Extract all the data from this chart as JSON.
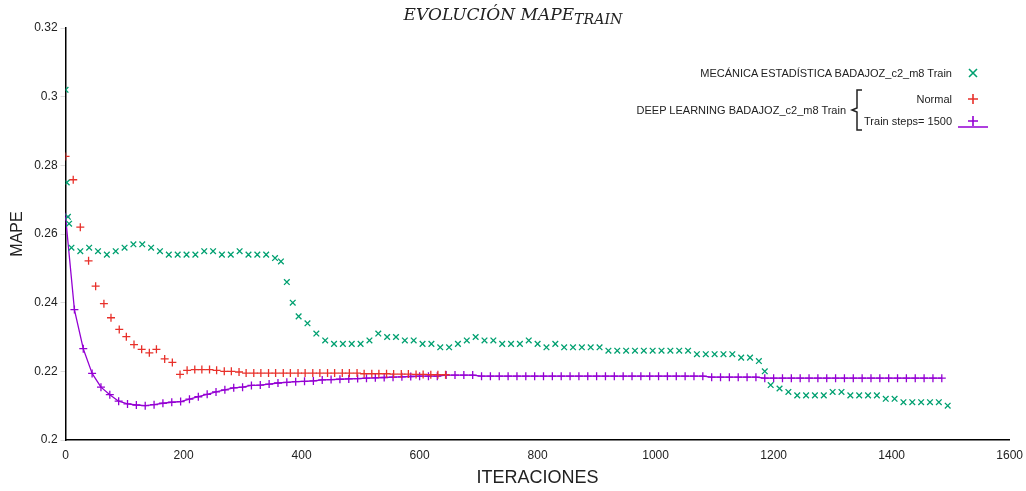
{
  "chart_data": {
    "type": "scatter",
    "title": "EVOLUCIÓN MAPE$_{TRAIN}$",
    "xlabel": "ITERACIONES",
    "ylabel": "MAPE",
    "xlim": [
      0,
      1600
    ],
    "xticks": [
      0,
      200,
      400,
      600,
      800,
      1000,
      1200,
      1400,
      1600
    ],
    "ylim": [
      0.2,
      0.32
    ],
    "yticks": [
      0.2,
      0.22,
      0.24,
      0.26,
      0.28,
      0.3,
      0.32
    ],
    "grid": false,
    "legend": "top right",
    "legend_title": "DEEP LEARNING  BADAJOZ_c2_m8  Train",
    "series": [
      {
        "name": "MECÁNICA ESTADÍSTICA  BADAJOZ_c2_m8  Train",
        "type": "scatter",
        "marker": "cross",
        "color": "#00a070",
        "x": [
          0,
          2,
          4,
          6,
          10,
          25,
          40,
          55,
          70,
          85,
          100,
          115,
          130,
          145,
          160,
          175,
          190,
          205,
          220,
          235,
          250,
          265,
          280,
          295,
          310,
          325,
          340,
          355,
          365,
          375,
          385,
          395,
          410,
          425,
          440,
          455,
          470,
          485,
          500,
          515,
          530,
          545,
          560,
          575,
          590,
          605,
          620,
          635,
          650,
          665,
          680,
          695,
          710,
          725,
          740,
          755,
          770,
          785,
          800,
          815,
          830,
          845,
          860,
          875,
          890,
          905,
          920,
          935,
          950,
          965,
          980,
          995,
          1010,
          1025,
          1040,
          1055,
          1070,
          1085,
          1100,
          1115,
          1130,
          1145,
          1160,
          1175,
          1185,
          1195,
          1210,
          1225,
          1240,
          1255,
          1270,
          1285,
          1300,
          1315,
          1330,
          1345,
          1360,
          1375,
          1390,
          1405,
          1420,
          1435,
          1450,
          1465,
          1480,
          1495
        ],
        "values": [
          0.302,
          0.275,
          0.265,
          0.263,
          0.256,
          0.255,
          0.256,
          0.255,
          0.254,
          0.255,
          0.256,
          0.257,
          0.257,
          0.256,
          0.255,
          0.254,
          0.254,
          0.254,
          0.254,
          0.255,
          0.255,
          0.254,
          0.254,
          0.255,
          0.254,
          0.254,
          0.254,
          0.253,
          0.252,
          0.246,
          0.24,
          0.236,
          0.234,
          0.231,
          0.229,
          0.228,
          0.228,
          0.228,
          0.228,
          0.229,
          0.231,
          0.23,
          0.23,
          0.229,
          0.229,
          0.228,
          0.228,
          0.227,
          0.227,
          0.228,
          0.229,
          0.23,
          0.229,
          0.229,
          0.228,
          0.228,
          0.228,
          0.229,
          0.228,
          0.227,
          0.228,
          0.227,
          0.227,
          0.227,
          0.227,
          0.227,
          0.226,
          0.226,
          0.226,
          0.226,
          0.226,
          0.226,
          0.226,
          0.226,
          0.226,
          0.226,
          0.225,
          0.225,
          0.225,
          0.225,
          0.225,
          0.224,
          0.224,
          0.223,
          0.22,
          0.216,
          0.215,
          0.214,
          0.213,
          0.213,
          0.213,
          0.213,
          0.214,
          0.214,
          0.213,
          0.213,
          0.213,
          0.213,
          0.212,
          0.212,
          0.211,
          0.211,
          0.211,
          0.211,
          0.211,
          0.21
        ]
      },
      {
        "name": "Normal",
        "type": "scatter",
        "marker": "plus",
        "color": "#e8302a",
        "x": [
          0,
          13,
          25,
          39,
          51,
          65,
          77,
          91,
          103,
          116,
          129,
          142,
          154,
          168,
          181,
          194,
          206,
          219,
          231,
          244,
          256,
          269,
          281,
          294,
          306,
          319,
          331,
          344,
          356,
          369,
          381,
          394,
          406,
          419,
          431,
          444,
          456,
          469,
          481,
          494,
          506,
          519,
          531,
          544,
          556,
          569,
          581,
          594,
          606,
          619,
          631,
          644
        ],
        "values": [
          0.2826,
          0.2758,
          0.262,
          0.2522,
          0.2448,
          0.2397,
          0.2356,
          0.2322,
          0.2301,
          0.2278,
          0.2264,
          0.2254,
          0.2264,
          0.2236,
          0.2226,
          0.2191,
          0.2203,
          0.2205,
          0.2205,
          0.2205,
          0.2203,
          0.22,
          0.22,
          0.2198,
          0.2195,
          0.2195,
          0.2195,
          0.2195,
          0.2195,
          0.2195,
          0.2195,
          0.2195,
          0.2195,
          0.2195,
          0.2195,
          0.2195,
          0.2195,
          0.2195,
          0.2195,
          0.2195,
          0.2193,
          0.2193,
          0.2193,
          0.2193,
          0.2192,
          0.2192,
          0.2192,
          0.2191,
          0.2191,
          0.219,
          0.219,
          0.219
        ]
      },
      {
        "name": "Train steps= 1500",
        "type": "line",
        "marker": "plus",
        "line_style": "solid",
        "color": "#9400d3",
        "x": [
          0,
          15,
          30,
          45,
          60,
          75,
          90,
          105,
          120,
          135,
          150,
          165,
          180,
          195,
          210,
          225,
          240,
          255,
          270,
          285,
          300,
          315,
          330,
          345,
          360,
          375,
          390,
          405,
          420,
          435,
          450,
          465,
          480,
          495,
          510,
          525,
          540,
          555,
          570,
          585,
          600,
          615,
          630,
          645,
          660,
          675,
          690,
          705,
          720,
          735,
          750,
          765,
          780,
          795,
          810,
          825,
          840,
          855,
          870,
          885,
          900,
          915,
          930,
          945,
          960,
          975,
          990,
          1005,
          1020,
          1035,
          1050,
          1065,
          1080,
          1095,
          1110,
          1125,
          1140,
          1155,
          1170,
          1185,
          1200,
          1215,
          1230,
          1245,
          1260,
          1275,
          1290,
          1305,
          1320,
          1335,
          1350,
          1365,
          1380,
          1395,
          1410,
          1425,
          1440,
          1455,
          1470,
          1485
        ],
        "values": [
          0.265,
          0.238,
          0.2266,
          0.2194,
          0.2154,
          0.2132,
          0.2113,
          0.2105,
          0.2102,
          0.21,
          0.2103,
          0.2107,
          0.211,
          0.2112,
          0.2119,
          0.2126,
          0.2133,
          0.214,
          0.2146,
          0.2152,
          0.2154,
          0.2159,
          0.216,
          0.2163,
          0.2166,
          0.2168,
          0.217,
          0.2171,
          0.2172,
          0.2175,
          0.2176,
          0.2177,
          0.2178,
          0.2179,
          0.218,
          0.2181,
          0.2182,
          0.2183,
          0.2184,
          0.2185,
          0.2186,
          0.2186,
          0.2186,
          0.2189,
          0.2189,
          0.2189,
          0.2189,
          0.2186,
          0.2186,
          0.2186,
          0.2186,
          0.2186,
          0.2186,
          0.2186,
          0.2186,
          0.2186,
          0.2186,
          0.2186,
          0.2186,
          0.2186,
          0.2186,
          0.2186,
          0.2186,
          0.2186,
          0.2186,
          0.2186,
          0.2186,
          0.2186,
          0.2186,
          0.2186,
          0.2186,
          0.2186,
          0.2186,
          0.2183,
          0.2183,
          0.2183,
          0.2183,
          0.2183,
          0.2183,
          0.218,
          0.218,
          0.218,
          0.218,
          0.218,
          0.218,
          0.218,
          0.218,
          0.218,
          0.218,
          0.218,
          0.218,
          0.218,
          0.218,
          0.218,
          0.218,
          0.218,
          0.218,
          0.218,
          0.218,
          0.218
        ]
      }
    ]
  }
}
